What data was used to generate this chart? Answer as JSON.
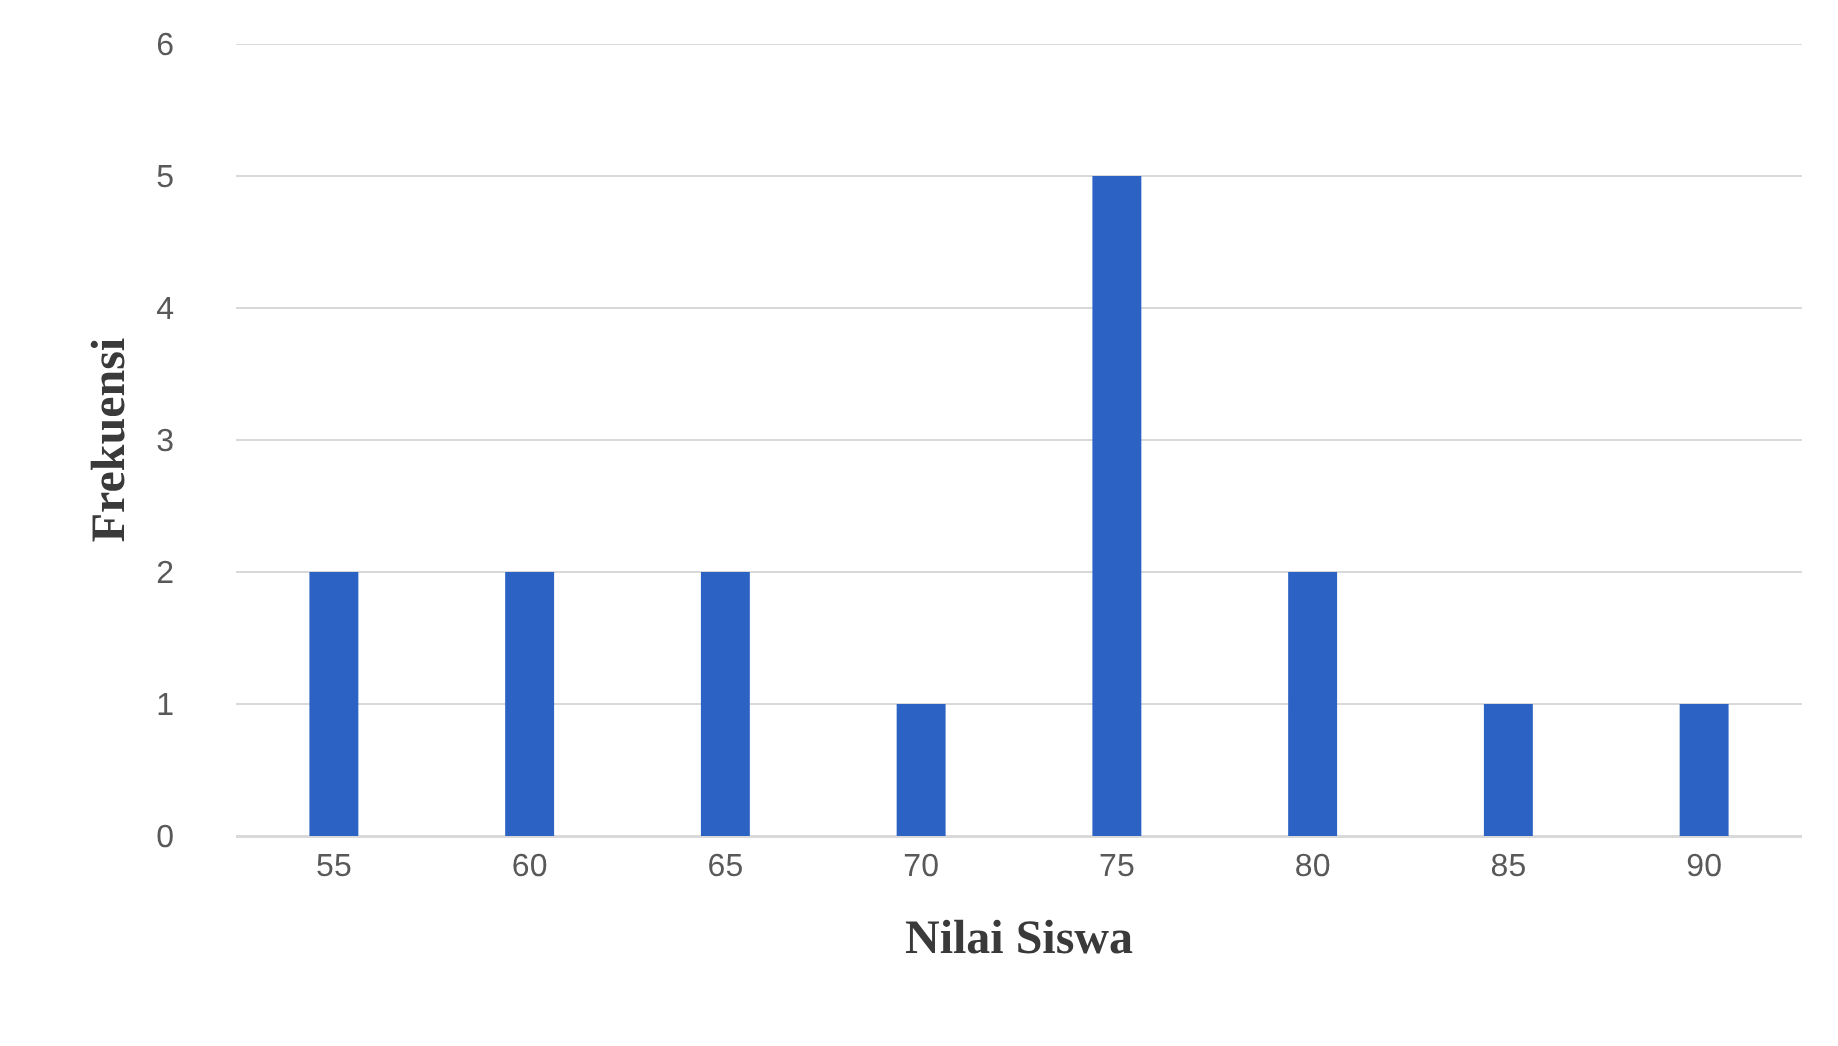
{
  "chart_data": {
    "type": "bar",
    "xlabel": "Nilai Siswa",
    "ylabel": "Frekuensi",
    "categories": [
      "55",
      "60",
      "65",
      "70",
      "75",
      "80",
      "85",
      "90"
    ],
    "values": [
      2,
      2,
      2,
      1,
      5,
      2,
      1,
      1
    ],
    "color": "#2b62c4",
    "ylim": [
      0,
      6
    ],
    "yticks": [
      0,
      1,
      2,
      3,
      4,
      5,
      6
    ],
    "grid": "y"
  }
}
